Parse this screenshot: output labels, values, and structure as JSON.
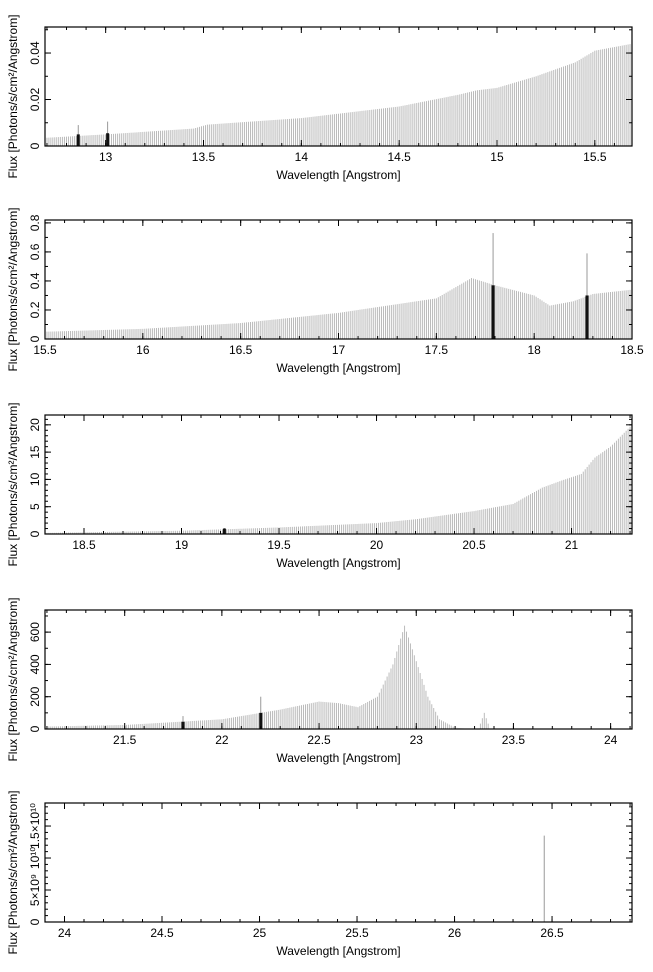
{
  "chart_data": [
    {
      "type": "bar",
      "xlabel": "Wavelength [Angstrom]",
      "ylabel": "Flux [Photons/s/cm²/Angstrom]",
      "xlim": [
        12.69,
        15.69
      ],
      "ylim": [
        0,
        0.0512
      ],
      "xticks": [
        {
          "v": 13,
          "t": "13"
        },
        {
          "v": 13.5,
          "t": "13.5"
        },
        {
          "v": 14,
          "t": "14"
        },
        {
          "v": 14.5,
          "t": "14.5"
        },
        {
          "v": 15,
          "t": "15"
        },
        {
          "v": 15.5,
          "t": "15.5"
        }
      ],
      "yticks": [
        {
          "v": 0,
          "t": "0"
        },
        {
          "v": 0.02,
          "t": "0.02"
        },
        {
          "v": 0.04,
          "t": "0.04"
        }
      ],
      "xminor": 0.1,
      "yminor": 0.01,
      "continuum": [
        [
          12.69,
          0.0035
        ],
        [
          13.0,
          0.005
        ],
        [
          13.45,
          0.0075
        ],
        [
          13.52,
          0.0092
        ],
        [
          14.0,
          0.012
        ],
        [
          14.2,
          0.014
        ],
        [
          14.5,
          0.017
        ],
        [
          14.8,
          0.022
        ],
        [
          14.9,
          0.024
        ],
        [
          15.0,
          0.025
        ],
        [
          15.2,
          0.03
        ],
        [
          15.4,
          0.036
        ],
        [
          15.5,
          0.041
        ],
        [
          15.69,
          0.044
        ]
      ],
      "lines": [
        {
          "x": 12.86,
          "peak": 0.009,
          "strength": 0.005
        },
        {
          "x": 13.01,
          "peak": 0.0105,
          "strength": 0.0055
        }
      ]
    },
    {
      "type": "bar",
      "xlabel": "Wavelength [Angstrom]",
      "ylabel": "Flux [Photons/s/cm²/Angstrom]",
      "xlim": [
        15.5,
        18.5
      ],
      "ylim": [
        0,
        0.82
      ],
      "xticks": [
        {
          "v": 15.5,
          "t": "15.5"
        },
        {
          "v": 16,
          "t": "16"
        },
        {
          "v": 16.5,
          "t": "16.5"
        },
        {
          "v": 17,
          "t": "17"
        },
        {
          "v": 17.5,
          "t": "17.5"
        },
        {
          "v": 18,
          "t": "18"
        },
        {
          "v": 18.5,
          "t": "18.5"
        }
      ],
      "yticks": [
        {
          "v": 0,
          "t": "0"
        },
        {
          "v": 0.2,
          "t": "0.2"
        },
        {
          "v": 0.4,
          "t": "0.4"
        },
        {
          "v": 0.6,
          "t": "0.6"
        },
        {
          "v": 0.8,
          "t": "0.8"
        }
      ],
      "xminor": 0.1,
      "yminor": 0.1,
      "continuum": [
        [
          15.5,
          0.05
        ],
        [
          16.0,
          0.07
        ],
        [
          16.5,
          0.11
        ],
        [
          17.0,
          0.18
        ],
        [
          17.5,
          0.28
        ],
        [
          17.68,
          0.42
        ],
        [
          17.8,
          0.37
        ],
        [
          18.0,
          0.3
        ],
        [
          18.08,
          0.23
        ],
        [
          18.2,
          0.26
        ],
        [
          18.3,
          0.31
        ],
        [
          18.5,
          0.34
        ]
      ],
      "lines": [
        {
          "x": 17.79,
          "peak": 0.73,
          "strength": 0.37
        },
        {
          "x": 18.27,
          "peak": 0.59,
          "strength": 0.3
        }
      ]
    },
    {
      "type": "bar",
      "xlabel": "Wavelength [Angstrom]",
      "ylabel": "Flux [Photons/s/cm²/Angstrom]",
      "xlim": [
        18.3,
        21.31
      ],
      "ylim": [
        0,
        21.8
      ],
      "xticks": [
        {
          "v": 18.5,
          "t": "18.5"
        },
        {
          "v": 19,
          "t": "19"
        },
        {
          "v": 19.5,
          "t": "19.5"
        },
        {
          "v": 20,
          "t": "20"
        },
        {
          "v": 20.5,
          "t": "20.5"
        },
        {
          "v": 21,
          "t": "21"
        }
      ],
      "yticks": [
        {
          "v": 0,
          "t": "0"
        },
        {
          "v": 5,
          "t": "5"
        },
        {
          "v": 10,
          "t": "10"
        },
        {
          "v": 15,
          "t": "15"
        },
        {
          "v": 20,
          "t": "20"
        }
      ],
      "xminor": 0.1,
      "yminor": 1,
      "continuum": [
        [
          18.3,
          0.2
        ],
        [
          19.0,
          0.6
        ],
        [
          19.5,
          1.2
        ],
        [
          20.0,
          2.0
        ],
        [
          20.2,
          2.7
        ],
        [
          20.5,
          4.2
        ],
        [
          20.7,
          5.5
        ],
        [
          20.85,
          8.5
        ],
        [
          20.95,
          9.8
        ],
        [
          21.05,
          11
        ],
        [
          21.12,
          14
        ],
        [
          21.2,
          16
        ],
        [
          21.31,
          20
        ]
      ],
      "lines": [
        {
          "x": 19.22,
          "peak": 1.1,
          "strength": 1.0
        }
      ]
    },
    {
      "type": "bar",
      "xlabel": "Wavelength [Angstrom]",
      "ylabel": "Flux [Photons/s/cm²/Angstrom]",
      "xlim": [
        21.09,
        24.11
      ],
      "ylim": [
        0,
        737
      ],
      "xticks": [
        {
          "v": 21.5,
          "t": "21.5"
        },
        {
          "v": 22,
          "t": "22"
        },
        {
          "v": 22.5,
          "t": "22.5"
        },
        {
          "v": 23,
          "t": "23"
        },
        {
          "v": 23.5,
          "t": "23.5"
        },
        {
          "v": 24,
          "t": "24"
        }
      ],
      "yticks": [
        {
          "v": 0,
          "t": "0"
        },
        {
          "v": 200,
          "t": "200"
        },
        {
          "v": 400,
          "t": "400"
        },
        {
          "v": 600,
          "t": "600"
        }
      ],
      "xminor": 0.1,
      "yminor": 100,
      "continuum": [
        [
          21.09,
          15
        ],
        [
          21.5,
          25
        ],
        [
          22.0,
          60
        ],
        [
          22.3,
          120
        ],
        [
          22.5,
          170
        ],
        [
          22.6,
          160
        ],
        [
          22.7,
          135
        ],
        [
          22.8,
          200
        ],
        [
          22.88,
          400
        ],
        [
          22.94,
          640
        ],
        [
          23.0,
          420
        ],
        [
          23.06,
          200
        ],
        [
          23.12,
          60
        ],
        [
          23.2,
          8
        ],
        [
          23.28,
          0
        ],
        [
          23.32,
          0
        ],
        [
          23.35,
          100
        ],
        [
          23.38,
          0
        ],
        [
          24.11,
          0
        ]
      ],
      "lines": [
        {
          "x": 21.8,
          "peak": 80,
          "strength": 45
        },
        {
          "x": 22.2,
          "peak": 200,
          "strength": 100
        }
      ]
    },
    {
      "type": "bar",
      "xlabel": "Wavelength [Angstrom]",
      "ylabel": "Flux [Photons/s/cm²/Angstrom]",
      "xlim": [
        23.9,
        26.91
      ],
      "ylim": [
        0,
        18600000000.0
      ],
      "xticks": [
        {
          "v": 24,
          "t": "24"
        },
        {
          "v": 24.5,
          "t": "24.5"
        },
        {
          "v": 25,
          "t": "25"
        },
        {
          "v": 25.5,
          "t": "25.5"
        },
        {
          "v": 26,
          "t": "26"
        },
        {
          "v": 26.5,
          "t": "26.5"
        }
      ],
      "yticks": [
        {
          "v": 0,
          "t": "0"
        },
        {
          "v": 5000000000.0,
          "t": "5×10⁹"
        },
        {
          "v": 10000000000.0,
          "t": "10¹⁰"
        },
        {
          "v": 15000000000.0,
          "t": "1.5×10¹⁰"
        }
      ],
      "xminor": 0.1,
      "yminor": 1000000000.0,
      "continuum": [
        [
          23.9,
          0
        ],
        [
          26.91,
          0
        ]
      ],
      "lines": [
        {
          "x": 26.46,
          "peak": 13500000000.0,
          "strength": 0
        }
      ]
    }
  ]
}
